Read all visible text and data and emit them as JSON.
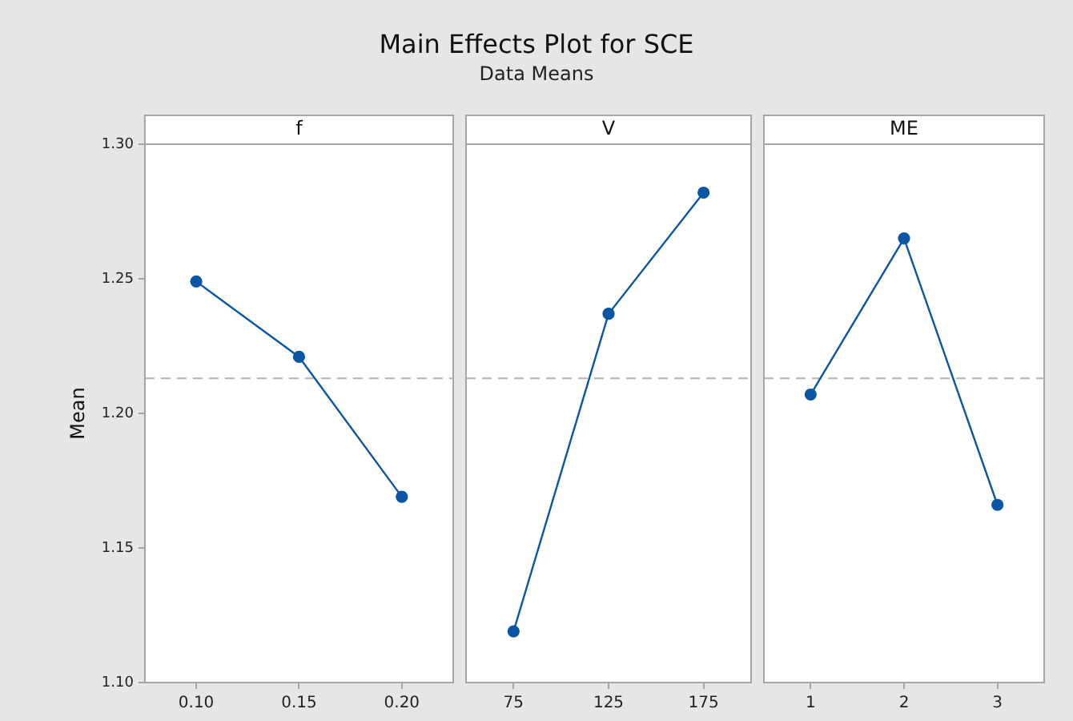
{
  "chart_data": [
    {
      "type": "other",
      "title": "Main Effects Plot for SCE",
      "subtitle": "Data Means"
    },
    {
      "type": "line",
      "title": "f",
      "ylabel": "Mean",
      "categories": [
        "0.10",
        "0.15",
        "0.20"
      ],
      "series": [
        {
          "color": "#0b56a4",
          "values": [
            1.249,
            1.221,
            1.169
          ]
        }
      ],
      "ylim": [
        1.1,
        1.3
      ],
      "yticks": [
        {
          "value": 1.1,
          "label": "1.10"
        },
        {
          "value": 1.15,
          "label": "1.15"
        },
        {
          "value": 1.2,
          "label": "1.20"
        },
        {
          "value": 1.25,
          "label": "1.25"
        },
        {
          "value": 1.3,
          "label": "1.30"
        }
      ],
      "ref_lines": [
        {
          "axis": "y",
          "value": 1.213,
          "color": "#b3b3b3",
          "line_style": "dashed"
        }
      ],
      "grid": false,
      "legend": false,
      "marker": "circle",
      "line_style": "solid"
    },
    {
      "type": "line",
      "title": "V",
      "categories": [
        "75",
        "125",
        "175"
      ],
      "series": [
        {
          "color": "#0b56a4",
          "values": [
            1.119,
            1.237,
            1.282
          ]
        }
      ],
      "ylim": [
        1.1,
        1.3
      ],
      "tick_labels": "x",
      "ref_lines": [
        {
          "axis": "y",
          "value": 1.213,
          "color": "#b3b3b3",
          "line_style": "dashed"
        }
      ],
      "grid": false,
      "legend": false,
      "marker": "circle",
      "line_style": "solid"
    },
    {
      "type": "line",
      "title": "ME",
      "categories": [
        "1",
        "2",
        "3"
      ],
      "series": [
        {
          "color": "#0b56a4",
          "values": [
            1.207,
            1.265,
            1.166
          ]
        }
      ],
      "ylim": [
        1.1,
        1.3
      ],
      "tick_labels": "x",
      "ref_lines": [
        {
          "axis": "y",
          "value": 1.213,
          "color": "#b3b3b3",
          "line_style": "dashed"
        }
      ],
      "grid": false,
      "legend": false,
      "marker": "circle",
      "line_style": "solid"
    }
  ]
}
